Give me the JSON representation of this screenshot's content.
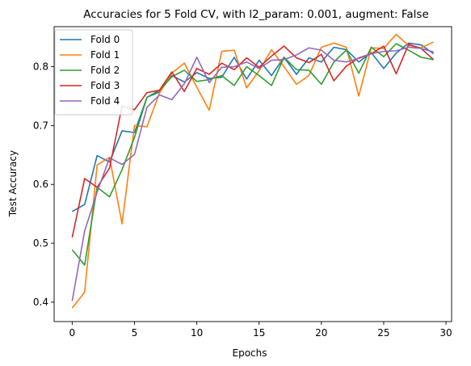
{
  "chart_data": {
    "type": "line",
    "title": "Accuracies for 5 Fold CV, with l2_param: 0.001, augment: False",
    "xlabel": "Epochs",
    "ylabel": "Test Accuracy",
    "xlim": [
      -1.45,
      30.45
    ],
    "ylim": [
      0.367,
      0.868
    ],
    "xticks": [
      0,
      5,
      10,
      15,
      20,
      25,
      30
    ],
    "yticks": [
      0.4,
      0.5,
      0.6,
      0.7,
      0.8
    ],
    "grid": false,
    "legend_position": "top-left",
    "x": [
      0,
      1,
      2,
      3,
      4,
      5,
      6,
      7,
      8,
      9,
      10,
      11,
      12,
      13,
      14,
      15,
      16,
      17,
      18,
      19,
      20,
      21,
      22,
      23,
      24,
      25,
      26,
      27,
      28,
      29
    ],
    "series": [
      {
        "name": "Fold 0",
        "color": "#1f77b4",
        "values": [
          0.554,
          0.566,
          0.649,
          0.638,
          0.691,
          0.688,
          0.748,
          0.757,
          0.785,
          0.774,
          0.79,
          0.78,
          0.782,
          0.816,
          0.779,
          0.811,
          0.785,
          0.816,
          0.787,
          0.815,
          0.808,
          0.833,
          0.829,
          0.808,
          0.824,
          0.797,
          0.823,
          0.84,
          0.837,
          0.822
        ]
      },
      {
        "name": "Fold 1",
        "color": "#ff7f0e",
        "values": [
          0.39,
          0.417,
          0.633,
          0.646,
          0.533,
          0.7,
          0.698,
          0.755,
          0.789,
          0.806,
          0.765,
          0.726,
          0.826,
          0.828,
          0.764,
          0.793,
          0.829,
          0.8,
          0.77,
          0.785,
          0.833,
          0.84,
          0.833,
          0.75,
          0.832,
          0.831,
          0.855,
          0.836,
          0.832,
          0.842
        ]
      },
      {
        "name": "Fold 2",
        "color": "#2ca02c",
        "values": [
          0.489,
          0.463,
          0.595,
          0.579,
          0.625,
          0.68,
          0.748,
          0.76,
          0.783,
          0.794,
          0.775,
          0.778,
          0.785,
          0.768,
          0.8,
          0.785,
          0.768,
          0.816,
          0.795,
          0.794,
          0.77,
          0.808,
          0.828,
          0.789,
          0.833,
          0.817,
          0.839,
          0.828,
          0.816,
          0.812
        ]
      },
      {
        "name": "Fold 3",
        "color": "#d62728",
        "values": [
          0.51,
          0.61,
          0.595,
          0.628,
          0.733,
          0.727,
          0.756,
          0.76,
          0.791,
          0.758,
          0.797,
          0.787,
          0.806,
          0.795,
          0.815,
          0.799,
          0.818,
          0.835,
          0.815,
          0.807,
          0.821,
          0.776,
          0.801,
          0.815,
          0.822,
          0.835,
          0.788,
          0.838,
          0.831,
          0.812
        ]
      },
      {
        "name": "Fold 4",
        "color": "#9467bd",
        "values": [
          0.402,
          0.521,
          0.587,
          0.645,
          0.634,
          0.651,
          0.731,
          0.752,
          0.744,
          0.771,
          0.816,
          0.773,
          0.799,
          0.8,
          0.808,
          0.797,
          0.811,
          0.812,
          0.82,
          0.832,
          0.828,
          0.811,
          0.808,
          0.814,
          0.822,
          0.826,
          0.827,
          0.833,
          0.831,
          0.825
        ]
      }
    ]
  }
}
